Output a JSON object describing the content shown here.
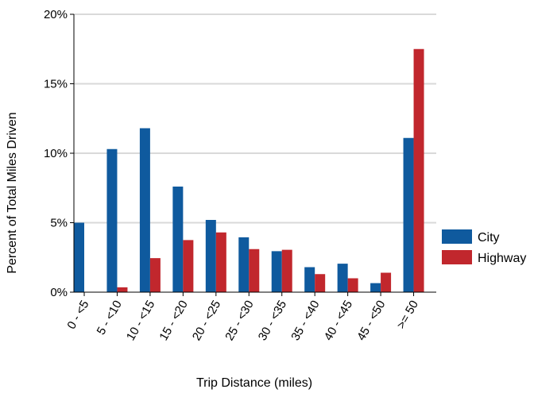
{
  "chart_data": {
    "type": "bar",
    "xlabel": "Trip Distance (miles)",
    "ylabel": "Percent of Total Miles Driven",
    "ylim": [
      0,
      20
    ],
    "yticks": [
      "0%",
      "5%",
      "10%",
      "15%",
      "20%"
    ],
    "ytick_values": [
      0,
      5,
      10,
      15,
      20
    ],
    "grid": "horizontal",
    "legend_position": "right",
    "categories": [
      "0 - <5",
      "5 - <10",
      "10 - <15",
      "15 - <20",
      "20 - <25",
      "25 - <30",
      "30 - <35",
      "35 - <40",
      "40 - <45",
      "45 - <50",
      ">= 50"
    ],
    "series": [
      {
        "name": "City",
        "color": "#0f5a9e",
        "values": [
          5.0,
          10.3,
          11.8,
          7.6,
          5.2,
          3.95,
          2.95,
          1.8,
          2.05,
          0.65,
          11.1
        ]
      },
      {
        "name": "Highway",
        "color": "#c1272d",
        "values": [
          0.0,
          0.35,
          2.45,
          3.75,
          4.3,
          3.1,
          3.05,
          1.3,
          1.0,
          1.4,
          17.5
        ]
      }
    ]
  }
}
